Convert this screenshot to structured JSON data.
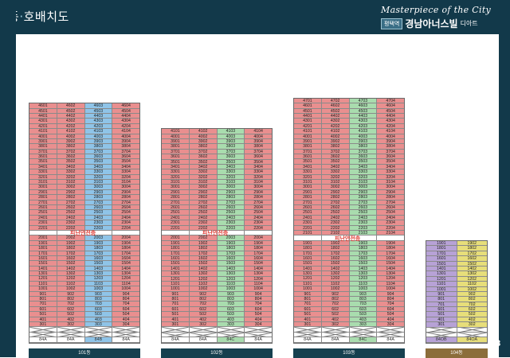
{
  "title": {
    "left": "동",
    "dot": "·",
    "right": "호배치도"
  },
  "brand": {
    "script": "Masterpiece of the City",
    "chip": "평택역",
    "name": "경남아너스빌",
    "suffix": "디아트"
  },
  "page_number": "8",
  "refuge_label": "피난안전층",
  "buildings": [
    {
      "id": "101",
      "label": "101동",
      "top_floor": 46,
      "refuge_floor": 21,
      "units": [
        "01",
        "02",
        "03",
        "04"
      ],
      "colors": [
        "red",
        "red",
        "blue",
        "red"
      ],
      "types": [
        "84A",
        "84A",
        "84B",
        "84A"
      ],
      "type_colors": [
        "",
        "",
        "blue",
        ""
      ]
    },
    {
      "id": "102",
      "label": "102동",
      "top_floor": 41,
      "refuge_floor": 21,
      "units": [
        "01",
        "02",
        "03",
        "04"
      ],
      "colors": [
        "red",
        "red",
        "green",
        "red"
      ],
      "types": [
        "84A",
        "84A",
        "84C",
        "84A"
      ],
      "type_colors": [
        "",
        "",
        "green",
        ""
      ]
    },
    {
      "id": "103",
      "label": "103동",
      "top_floor": 47,
      "refuge_floor": 20,
      "units": [
        "01",
        "02",
        "03",
        "04"
      ],
      "colors": [
        "red",
        "red",
        "green",
        "red"
      ],
      "types": [
        "84A",
        "84A",
        "84C",
        "84A"
      ],
      "type_colors": [
        "",
        "",
        "green",
        ""
      ]
    },
    {
      "id": "104",
      "label": "104동",
      "top_floor": 19,
      "refuge_floor": null,
      "units": [
        "01",
        "02"
      ],
      "colors": [
        "purple",
        "yellow"
      ],
      "types": [
        "84OB",
        "84OA"
      ],
      "type_colors": [
        "purple",
        "yellow"
      ]
    }
  ]
}
